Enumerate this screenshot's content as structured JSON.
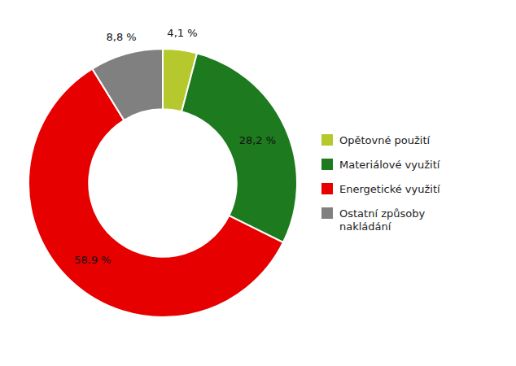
{
  "chart_data": {
    "type": "donut",
    "categories": [
      "Opětovné použití",
      "Materiálové využití",
      "Energetické využití",
      "Ostatní způsoby\nnakládání"
    ],
    "values": [
      4.1,
      28.2,
      58.9,
      8.8
    ],
    "value_labels": [
      "4,1 %",
      "28,2 %",
      "58,9 %",
      "8,8 %"
    ],
    "colors": [
      "#b5c92e",
      "#1e7a1e",
      "#e60000",
      "#808080"
    ],
    "data_labels": true,
    "legend": "right"
  }
}
